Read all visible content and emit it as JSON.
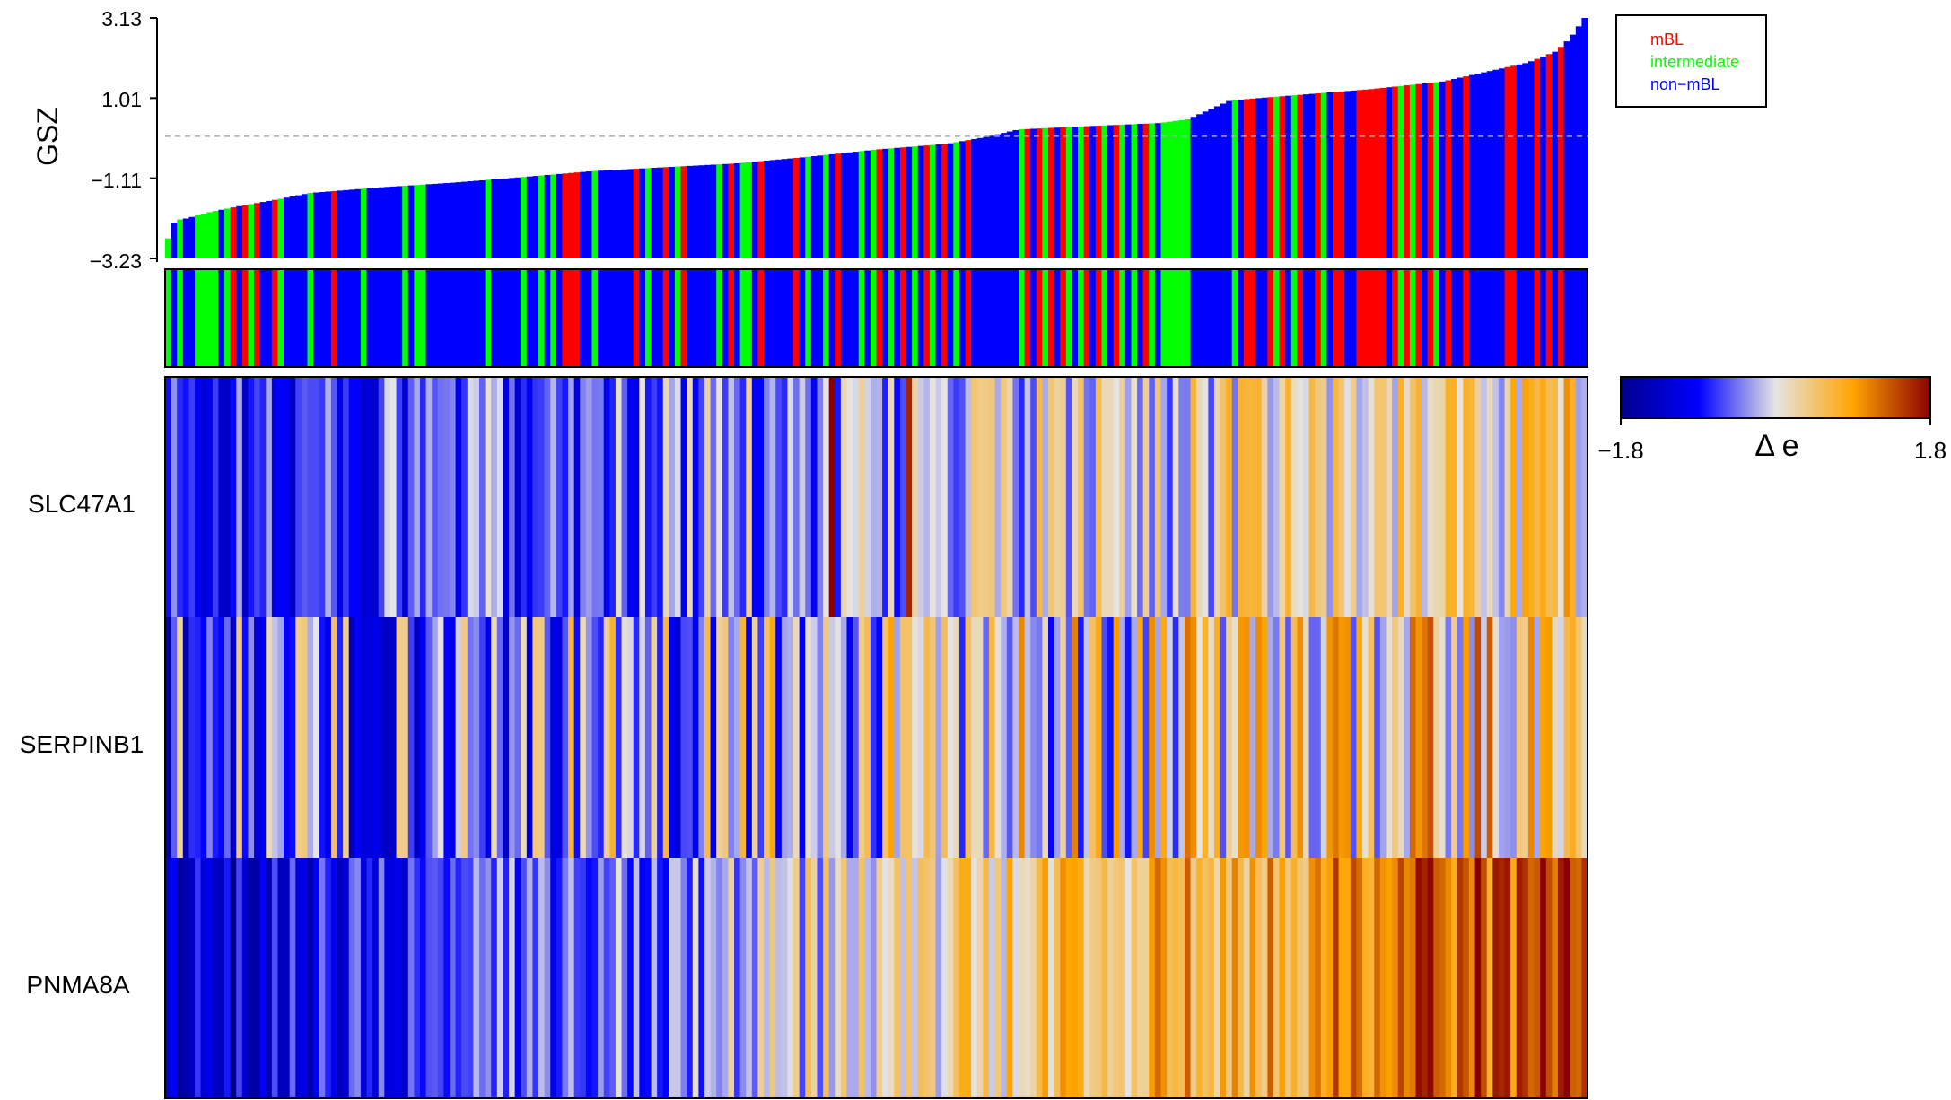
{
  "chart_data": [
    {
      "type": "bar",
      "ylabel": "GSZ",
      "yticks": [
        "3.13",
        "1.01",
        "−1.11",
        "−3.23"
      ],
      "ytick_values": [
        3.13,
        1.01,
        -1.11,
        -3.23
      ],
      "ylim": [
        -3.23,
        3.13
      ],
      "threshold_line": 0.0,
      "n_samples": 240,
      "x_order": "samples sorted by ascending GSZ",
      "legend_position": "top-right",
      "legend": [
        {
          "label": "mBL",
          "color": "#ff0000"
        },
        {
          "label": "intermediate",
          "color": "#00ff00"
        },
        {
          "label": "non−mBL",
          "color": "#0000ff"
        }
      ],
      "group_colors": {
        "mBL": "#ff0000",
        "intermediate": "#00ff00",
        "non-mBL": "#0000ff"
      },
      "gsz_profile": {
        "x_fraction": [
          0,
          0.005,
          0.01,
          0.03,
          0.05,
          0.08,
          0.1,
          0.15,
          0.2,
          0.25,
          0.3,
          0.35,
          0.4,
          0.45,
          0.5,
          0.55,
          0.58,
          0.6,
          0.65,
          0.7,
          0.72,
          0.75,
          0.8,
          0.85,
          0.9,
          0.93,
          0.96,
          0.98,
          0.99,
          1.0
        ],
        "gsz": [
          -2.7,
          -2.2,
          -2.2,
          -2.0,
          -1.85,
          -1.65,
          -1.5,
          -1.35,
          -1.23,
          -1.08,
          -0.92,
          -0.82,
          -0.72,
          -0.55,
          -0.35,
          -0.2,
          0.0,
          0.18,
          0.27,
          0.35,
          0.45,
          0.95,
          1.1,
          1.25,
          1.45,
          1.7,
          1.95,
          2.25,
          2.6,
          3.13
        ]
      },
      "group_runs": [
        {
          "group": "intermediate",
          "start": 0,
          "end": 1
        },
        {
          "group": "non-mBL",
          "start": 1,
          "end": 2
        },
        {
          "group": "intermediate",
          "start": 2,
          "end": 3
        },
        {
          "group": "non-mBL",
          "start": 3,
          "end": 5
        },
        {
          "group": "intermediate",
          "start": 5,
          "end": 9
        },
        {
          "group": "non-mBL",
          "start": 9,
          "end": 10
        },
        {
          "group": "intermediate",
          "start": 10,
          "end": 11
        },
        {
          "group": "mBL",
          "start": 11,
          "end": 12
        },
        {
          "group": "non-mBL",
          "start": 12,
          "end": 13
        },
        {
          "group": "mBL",
          "start": 13,
          "end": 14
        },
        {
          "group": "intermediate",
          "start": 14,
          "end": 15
        },
        {
          "group": "mBL",
          "start": 15,
          "end": 16
        },
        {
          "group": "non-mBL",
          "start": 16,
          "end": 18
        },
        {
          "group": "mBL",
          "start": 18,
          "end": 19
        },
        {
          "group": "intermediate",
          "start": 19,
          "end": 20
        },
        {
          "group": "non-mBL",
          "start": 20,
          "end": 24
        },
        {
          "group": "intermediate",
          "start": 24,
          "end": 25
        },
        {
          "group": "non-mBL",
          "start": 25,
          "end": 28
        },
        {
          "group": "mBL",
          "start": 28,
          "end": 29
        },
        {
          "group": "non-mBL",
          "start": 29,
          "end": 33
        },
        {
          "group": "intermediate",
          "start": 33,
          "end": 34
        },
        {
          "group": "non-mBL",
          "start": 34,
          "end": 40
        },
        {
          "group": "intermediate",
          "start": 40,
          "end": 41
        },
        {
          "group": "non-mBL",
          "start": 41,
          "end": 42
        },
        {
          "group": "intermediate",
          "start": 42,
          "end": 44
        },
        {
          "group": "non-mBL",
          "start": 44,
          "end": 54
        },
        {
          "group": "intermediate",
          "start": 54,
          "end": 55
        },
        {
          "group": "non-mBL",
          "start": 55,
          "end": 60
        },
        {
          "group": "intermediate",
          "start": 60,
          "end": 61
        },
        {
          "group": "non-mBL",
          "start": 61,
          "end": 63
        },
        {
          "group": "intermediate",
          "start": 63,
          "end": 64
        },
        {
          "group": "non-mBL",
          "start": 64,
          "end": 65
        },
        {
          "group": "intermediate",
          "start": 65,
          "end": 66
        },
        {
          "group": "non-mBL",
          "start": 66,
          "end": 67
        },
        {
          "group": "mBL",
          "start": 67,
          "end": 70
        },
        {
          "group": "non-mBL",
          "start": 70,
          "end": 72
        },
        {
          "group": "intermediate",
          "start": 72,
          "end": 73
        },
        {
          "group": "non-mBL",
          "start": 73,
          "end": 79
        },
        {
          "group": "mBL",
          "start": 79,
          "end": 80
        },
        {
          "group": "non-mBL",
          "start": 80,
          "end": 81
        },
        {
          "group": "intermediate",
          "start": 81,
          "end": 82
        },
        {
          "group": "non-mBL",
          "start": 82,
          "end": 84
        },
        {
          "group": "mBL",
          "start": 84,
          "end": 85
        },
        {
          "group": "non-mBL",
          "start": 85,
          "end": 86
        },
        {
          "group": "intermediate",
          "start": 86,
          "end": 87
        },
        {
          "group": "mBL",
          "start": 87,
          "end": 88
        },
        {
          "group": "non-mBL",
          "start": 88,
          "end": 93
        },
        {
          "group": "intermediate",
          "start": 93,
          "end": 94
        },
        {
          "group": "non-mBL",
          "start": 94,
          "end": 95
        },
        {
          "group": "mBL",
          "start": 95,
          "end": 96
        },
        {
          "group": "non-mBL",
          "start": 96,
          "end": 97
        },
        {
          "group": "intermediate",
          "start": 97,
          "end": 99
        },
        {
          "group": "non-mBL",
          "start": 99,
          "end": 100
        },
        {
          "group": "mBL",
          "start": 100,
          "end": 101
        },
        {
          "group": "non-mBL",
          "start": 101,
          "end": 106
        },
        {
          "group": "mBL",
          "start": 106,
          "end": 107
        },
        {
          "group": "non-mBL",
          "start": 107,
          "end": 108
        },
        {
          "group": "intermediate",
          "start": 108,
          "end": 109
        },
        {
          "group": "non-mBL",
          "start": 109,
          "end": 111
        },
        {
          "group": "intermediate",
          "start": 111,
          "end": 112
        },
        {
          "group": "non-mBL",
          "start": 112,
          "end": 113
        },
        {
          "group": "mBL",
          "start": 113,
          "end": 114
        },
        {
          "group": "non-mBL",
          "start": 114,
          "end": 117
        },
        {
          "group": "intermediate",
          "start": 117,
          "end": 118
        },
        {
          "group": "non-mBL",
          "start": 118,
          "end": 119
        },
        {
          "group": "intermediate",
          "start": 119,
          "end": 120
        },
        {
          "group": "mBL",
          "start": 120,
          "end": 121
        },
        {
          "group": "non-mBL",
          "start": 121,
          "end": 122
        },
        {
          "group": "intermediate",
          "start": 122,
          "end": 123
        },
        {
          "group": "non-mBL",
          "start": 123,
          "end": 124
        },
        {
          "group": "mBL",
          "start": 124,
          "end": 125
        },
        {
          "group": "non-mBL",
          "start": 125,
          "end": 126
        },
        {
          "group": "intermediate",
          "start": 126,
          "end": 127
        },
        {
          "group": "non-mBL",
          "start": 127,
          "end": 128
        },
        {
          "group": "mBL",
          "start": 128,
          "end": 129
        },
        {
          "group": "intermediate",
          "start": 129,
          "end": 130
        },
        {
          "group": "non-mBL",
          "start": 130,
          "end": 131
        },
        {
          "group": "mBL",
          "start": 131,
          "end": 132
        },
        {
          "group": "non-mBL",
          "start": 132,
          "end": 133
        },
        {
          "group": "intermediate",
          "start": 133,
          "end": 134
        },
        {
          "group": "non-mBL",
          "start": 134,
          "end": 135
        },
        {
          "group": "mBL",
          "start": 135,
          "end": 136
        },
        {
          "group": "non-mBL",
          "start": 136,
          "end": 144
        },
        {
          "group": "intermediate",
          "start": 144,
          "end": 145
        },
        {
          "group": "mBL",
          "start": 145,
          "end": 146
        },
        {
          "group": "non-mBL",
          "start": 146,
          "end": 147
        },
        {
          "group": "mBL",
          "start": 147,
          "end": 148
        },
        {
          "group": "intermediate",
          "start": 148,
          "end": 149
        },
        {
          "group": "mBL",
          "start": 149,
          "end": 150
        },
        {
          "group": "non-mBL",
          "start": 150,
          "end": 151
        },
        {
          "group": "mBL",
          "start": 151,
          "end": 152
        },
        {
          "group": "intermediate",
          "start": 152,
          "end": 153
        },
        {
          "group": "non-mBL",
          "start": 153,
          "end": 154
        },
        {
          "group": "intermediate",
          "start": 154,
          "end": 155
        },
        {
          "group": "mBL",
          "start": 155,
          "end": 156
        },
        {
          "group": "non-mBL",
          "start": 156,
          "end": 157
        },
        {
          "group": "mBL",
          "start": 157,
          "end": 158
        },
        {
          "group": "intermediate",
          "start": 158,
          "end": 159
        },
        {
          "group": "non-mBL",
          "start": 159,
          "end": 160
        },
        {
          "group": "mBL",
          "start": 160,
          "end": 161
        },
        {
          "group": "intermediate",
          "start": 161,
          "end": 162
        },
        {
          "group": "non-mBL",
          "start": 162,
          "end": 163
        },
        {
          "group": "intermediate",
          "start": 163,
          "end": 164
        },
        {
          "group": "non-mBL",
          "start": 164,
          "end": 165
        },
        {
          "group": "mBL",
          "start": 165,
          "end": 166
        },
        {
          "group": "intermediate",
          "start": 166,
          "end": 167
        },
        {
          "group": "non-mBL",
          "start": 167,
          "end": 168
        },
        {
          "group": "intermediate",
          "start": 168,
          "end": 173
        },
        {
          "group": "non-mBL",
          "start": 173,
          "end": 180
        },
        {
          "group": "intermediate",
          "start": 180,
          "end": 181
        },
        {
          "group": "non-mBL",
          "start": 181,
          "end": 182
        },
        {
          "group": "mBL",
          "start": 182,
          "end": 184
        },
        {
          "group": "non-mBL",
          "start": 184,
          "end": 186
        },
        {
          "group": "mBL",
          "start": 186,
          "end": 187
        },
        {
          "group": "intermediate",
          "start": 187,
          "end": 188
        },
        {
          "group": "mBL",
          "start": 188,
          "end": 189
        },
        {
          "group": "non-mBL",
          "start": 189,
          "end": 190
        },
        {
          "group": "intermediate",
          "start": 190,
          "end": 191
        },
        {
          "group": "mBL",
          "start": 191,
          "end": 192
        },
        {
          "group": "non-mBL",
          "start": 192,
          "end": 194
        },
        {
          "group": "mBL",
          "start": 194,
          "end": 195
        },
        {
          "group": "intermediate",
          "start": 195,
          "end": 196
        },
        {
          "group": "non-mBL",
          "start": 196,
          "end": 197
        },
        {
          "group": "mBL",
          "start": 197,
          "end": 199
        },
        {
          "group": "non-mBL",
          "start": 199,
          "end": 201
        },
        {
          "group": "mBL",
          "start": 201,
          "end": 206
        },
        {
          "group": "non-mBL",
          "start": 206,
          "end": 207
        },
        {
          "group": "mBL",
          "start": 207,
          "end": 208
        },
        {
          "group": "intermediate",
          "start": 208,
          "end": 209
        },
        {
          "group": "mBL",
          "start": 209,
          "end": 210
        },
        {
          "group": "intermediate",
          "start": 210,
          "end": 211
        },
        {
          "group": "mBL",
          "start": 211,
          "end": 212
        },
        {
          "group": "non-mBL",
          "start": 212,
          "end": 213
        },
        {
          "group": "mBL",
          "start": 213,
          "end": 214
        },
        {
          "group": "intermediate",
          "start": 214,
          "end": 215
        },
        {
          "group": "non-mBL",
          "start": 215,
          "end": 216
        },
        {
          "group": "mBL",
          "start": 216,
          "end": 217
        },
        {
          "group": "non-mBL",
          "start": 217,
          "end": 219
        },
        {
          "group": "mBL",
          "start": 219,
          "end": 220
        },
        {
          "group": "non-mBL",
          "start": 220,
          "end": 226
        },
        {
          "group": "mBL",
          "start": 226,
          "end": 228
        },
        {
          "group": "non-mBL",
          "start": 228,
          "end": 231
        },
        {
          "group": "mBL",
          "start": 231,
          "end": 232
        },
        {
          "group": "non-mBL",
          "start": 232,
          "end": 233
        },
        {
          "group": "mBL",
          "start": 233,
          "end": 234
        },
        {
          "group": "non-mBL",
          "start": 234,
          "end": 235
        },
        {
          "group": "mBL",
          "start": 235,
          "end": 236
        },
        {
          "group": "non-mBL",
          "start": 236,
          "end": 240
        }
      ]
    },
    {
      "type": "heatmap",
      "rows": [
        "SLC47A1",
        "SERPINB1",
        "PNMA8A"
      ],
      "n_columns": 240,
      "columns": "same sample order as the GSZ bar chart",
      "colorbar": {
        "min_label": "−1.8",
        "max_label": "1.8",
        "min": -1.8,
        "max": 1.8,
        "label": "Δ e",
        "colors": [
          "#00008b",
          "#0000ff",
          "#e5e5e5",
          "#ffa500",
          "#8b0000"
        ]
      },
      "row_trend": {
        "SLC47A1": {
          "start": -0.9,
          "end": 0.4,
          "noise": 0.7
        },
        "SERPINB1": {
          "start": -0.6,
          "end": 0.5,
          "noise": 1.0
        },
        "PNMA8A": {
          "start": -1.3,
          "end": 1.5,
          "noise": 0.6
        }
      },
      "highlighted_columns": [
        {
          "row": "SLC47A1",
          "column": 112,
          "value": 1.8
        },
        {
          "row": "SLC47A1",
          "column": 125,
          "value": 1.6
        }
      ]
    }
  ]
}
